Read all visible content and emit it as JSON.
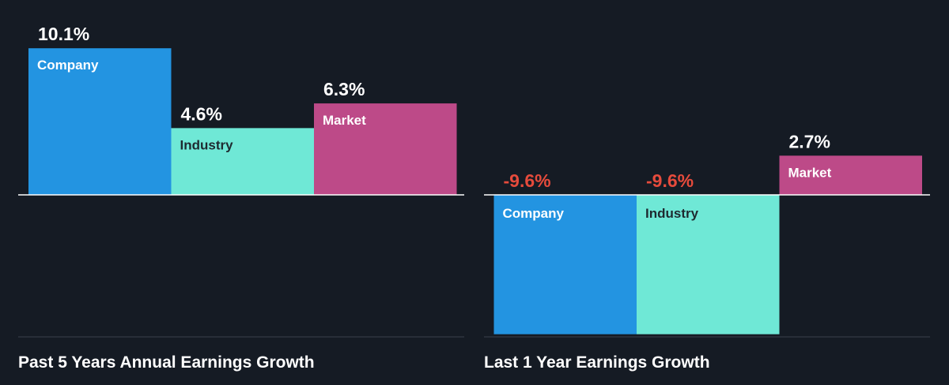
{
  "colors": {
    "background": "#151b24",
    "company": "#2394e1",
    "industry": "#6fe8d6",
    "market": "#bd4a88",
    "value_positive": "#ffffff",
    "value_negative": "#e64b3c",
    "axis_line": "#ffffff",
    "baseline_rule": "#3a414b"
  },
  "chart_data": [
    {
      "type": "bar",
      "title": "Past 5 Years Annual Earnings Growth",
      "categories": [
        "Company",
        "Industry",
        "Market"
      ],
      "values": [
        10.1,
        4.6,
        6.3
      ],
      "value_labels": [
        "10.1%",
        "4.6%",
        "6.3%"
      ],
      "unit": "%"
    },
    {
      "type": "bar",
      "title": "Last 1 Year Earnings Growth",
      "categories": [
        "Company",
        "Industry",
        "Market"
      ],
      "values": [
        -9.6,
        -9.6,
        2.7
      ],
      "value_labels": [
        "-9.6%",
        "-9.6%",
        "2.7%"
      ],
      "unit": "%"
    }
  ]
}
